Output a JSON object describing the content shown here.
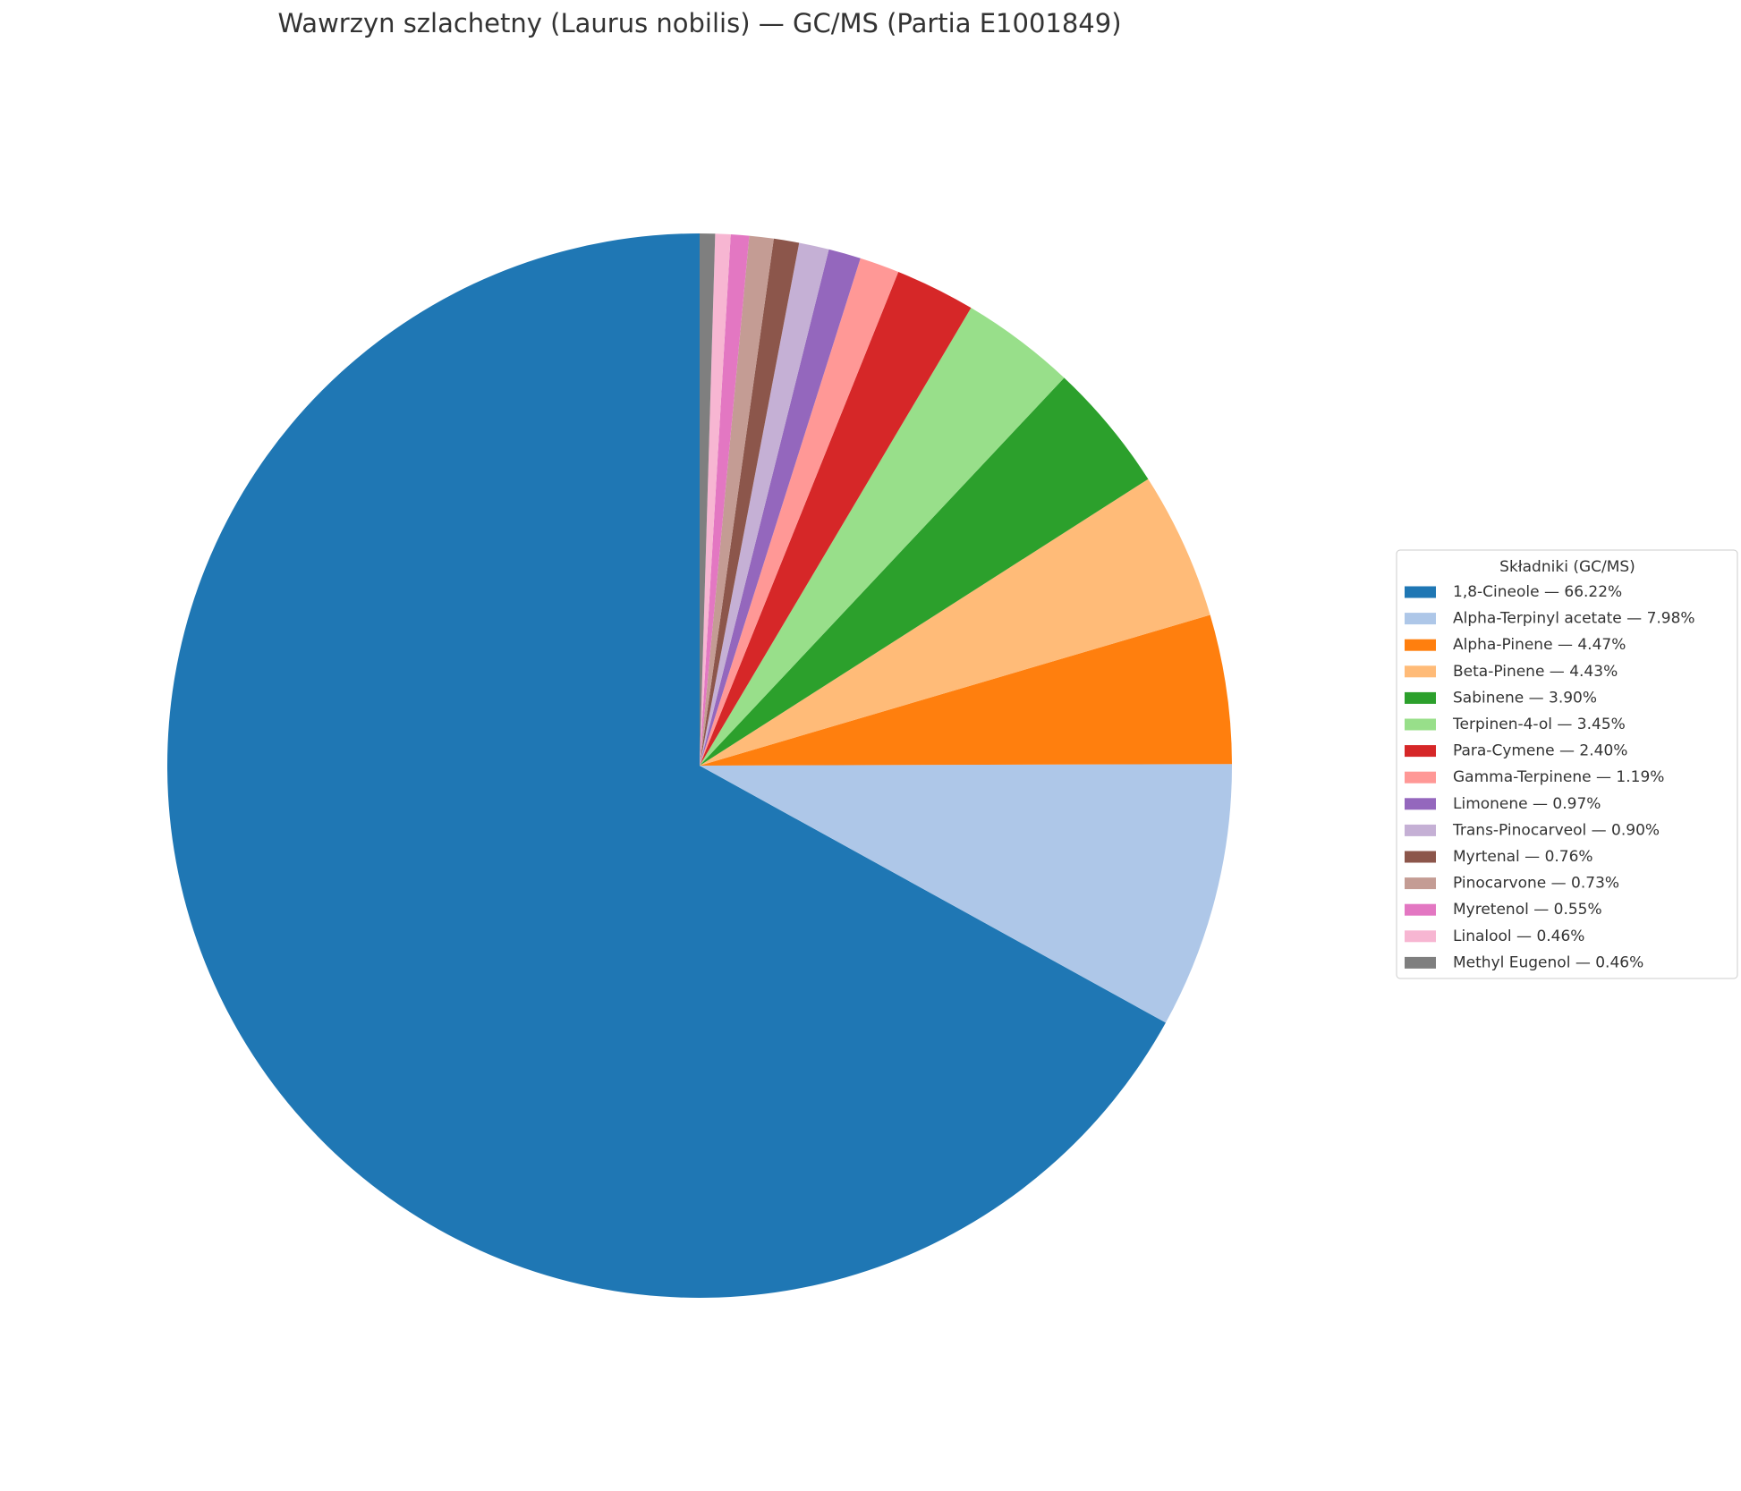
{
  "chart_data": {
    "type": "pie",
    "title": "Wawrzyn szlachetny (Laurus nobilis) — GC/MS (Partia E1001849)",
    "legend_title": "Składniki (GC/MS)",
    "legend_position": "right",
    "start_angle": 90,
    "counterclockwise": true,
    "categories": [
      "1,8-Cineole — 66.22%",
      "Alpha-Terpinyl acetate — 7.98%",
      "Alpha-Pinene — 4.47%",
      "Beta-Pinene — 4.43%",
      "Sabinene — 3.90%",
      "Terpinen-4-ol — 3.45%",
      "Para-Cymene — 2.40%",
      "Gamma-Terpinene — 1.19%",
      "Limonene — 0.97%",
      "Trans-Pinocarveol — 0.90%",
      "Myrtenal — 0.76%",
      "Pinocarvone — 0.73%",
      "Myretenol — 0.55%",
      "Linalool — 0.46%",
      "Methyl Eugenol — 0.46%"
    ],
    "values": [
      66.22,
      7.98,
      4.47,
      4.43,
      3.9,
      3.45,
      2.4,
      1.19,
      0.97,
      0.9,
      0.76,
      0.73,
      0.55,
      0.46,
      0.46
    ],
    "colors": [
      "#1f77b4",
      "#aec7e8",
      "#ff7f0e",
      "#ffbb78",
      "#2ca02c",
      "#98df8a",
      "#d62728",
      "#ff9896",
      "#9467bd",
      "#c5b0d5",
      "#8c564b",
      "#c49c94",
      "#e377c2",
      "#f7b6d2",
      "#7f7f7f"
    ]
  }
}
